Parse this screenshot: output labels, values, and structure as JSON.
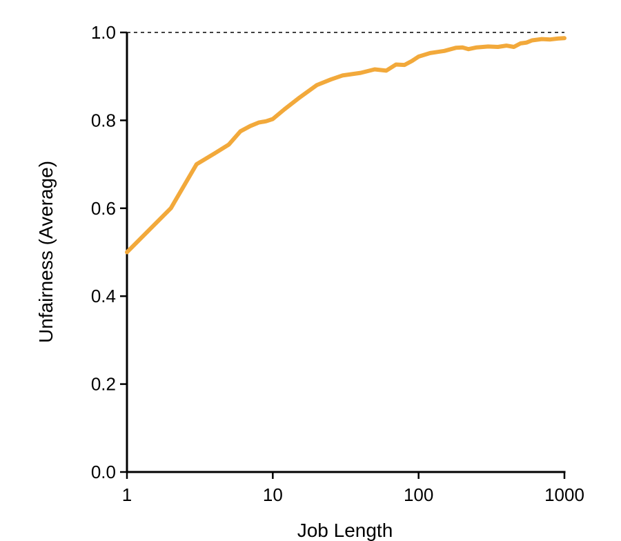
{
  "chart_data": {
    "type": "line",
    "xlabel": "Job Length",
    "ylabel": "Unfairness (Average)",
    "x_scale": "log",
    "xlim": [
      1,
      1000
    ],
    "ylim": [
      0,
      1
    ],
    "x_ticks": [
      1,
      10,
      100,
      1000
    ],
    "x_tick_labels": [
      "1",
      "10",
      "100",
      "1000"
    ],
    "y_ticks": [
      0,
      0.2,
      0.4,
      0.6,
      0.8,
      1.0
    ],
    "y_tick_labels": [
      "0.0",
      "0.2",
      "0.4",
      "0.6",
      "0.8",
      "1.0"
    ],
    "grid": false,
    "reference_line": {
      "y": 1.0,
      "style": "dashed"
    },
    "series": [
      {
        "color": "#f2a93b",
        "x": [
          1,
          2,
          3,
          4,
          5,
          6,
          7,
          8,
          9,
          10,
          12,
          15,
          20,
          25,
          30,
          40,
          50,
          60,
          70,
          80,
          90,
          100,
          120,
          150,
          180,
          200,
          220,
          250,
          300,
          350,
          400,
          450,
          500,
          550,
          600,
          700,
          800,
          900,
          1000
        ],
        "y": [
          0.5,
          0.6,
          0.7,
          0.725,
          0.745,
          0.775,
          0.787,
          0.795,
          0.798,
          0.803,
          0.825,
          0.85,
          0.88,
          0.893,
          0.902,
          0.908,
          0.916,
          0.913,
          0.927,
          0.926,
          0.935,
          0.945,
          0.953,
          0.958,
          0.965,
          0.966,
          0.962,
          0.966,
          0.968,
          0.967,
          0.97,
          0.967,
          0.975,
          0.977,
          0.982,
          0.985,
          0.984,
          0.986,
          0.987
        ]
      }
    ]
  }
}
